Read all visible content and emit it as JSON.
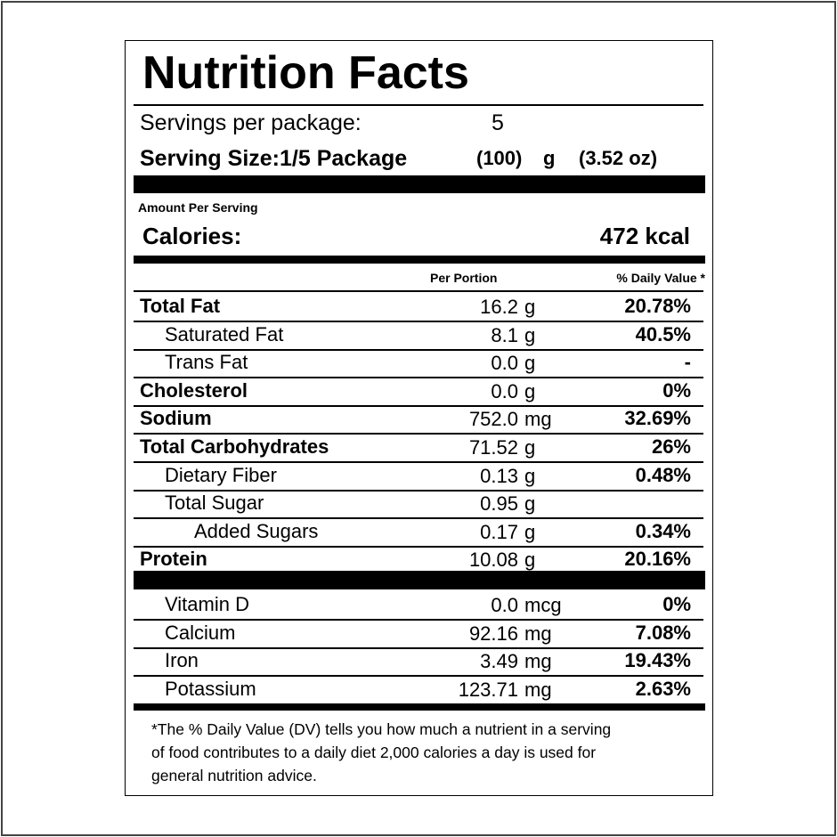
{
  "title": "Nutrition Facts",
  "servings": {
    "label": "Servings per package:",
    "value": "5"
  },
  "serving_size": {
    "label": "Serving Size:1/5 Package",
    "grams": "(100)",
    "unit": "g",
    "oz": "(3.52 oz)"
  },
  "amount_per_serving": "Amount Per Serving",
  "calories": {
    "label": "Calories:",
    "value": "472 kcal"
  },
  "columns": {
    "portion": "Per Portion",
    "dv": "% Daily Value *"
  },
  "nutrients": [
    {
      "name": "Total Fat",
      "level": 0,
      "amount": "16.2",
      "unit": "g",
      "dv": "20.78%"
    },
    {
      "name": "Saturated Fat",
      "level": 1,
      "amount": "8.1",
      "unit": "g",
      "dv": "40.5%"
    },
    {
      "name": "Trans Fat",
      "level": 1,
      "amount": "0.0",
      "unit": "g",
      "dv": "-"
    },
    {
      "name": "Cholesterol",
      "level": 0,
      "amount": "0.0",
      "unit": "g",
      "dv": "0%"
    },
    {
      "name": "Sodium",
      "level": 0,
      "amount": "752.0",
      "unit": "mg",
      "dv": "32.69%"
    },
    {
      "name": "Total Carbohydrates",
      "level": 0,
      "amount": "71.52",
      "unit": "g",
      "dv": "26%"
    },
    {
      "name": "Dietary Fiber",
      "level": 1,
      "amount": "0.13",
      "unit": "g",
      "dv": "0.48%"
    },
    {
      "name": "Total Sugar",
      "level": 1,
      "amount": "0.95",
      "unit": "g"
    },
    {
      "name": "Added Sugars",
      "level": 2,
      "amount": "0.17",
      "unit": "g",
      "dv": "0.34%"
    },
    {
      "name": "Protein",
      "level": 0,
      "amount": "10.08",
      "unit": "g",
      "dv": "20.16%"
    }
  ],
  "vitamins": [
    {
      "name": "Vitamin D",
      "level": 1,
      "amount": "0.0",
      "unit": "mcg",
      "dv": "0%"
    },
    {
      "name": "Calcium",
      "level": 1,
      "amount": "92.16",
      "unit": "mg",
      "dv": "7.08%"
    },
    {
      "name": "Iron",
      "level": 1,
      "amount": "3.49",
      "unit": "mg",
      "dv": "19.43%"
    },
    {
      "name": "Potassium",
      "level": 1,
      "amount": "123.71",
      "unit": "mg",
      "dv": "2.63%"
    }
  ],
  "footnote": [
    "*The % Daily Value (DV) tells you how much a nutrient in a serving",
    "of food contributes to a daily diet 2,000 calories a day is used for",
    "general nutrition advice."
  ]
}
